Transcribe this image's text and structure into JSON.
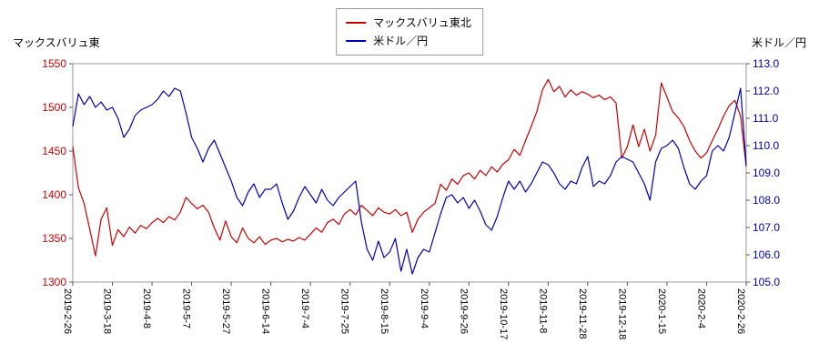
{
  "page": {
    "left_axis_title": "マックスバリュ東",
    "right_axis_title": "米ドル／円"
  },
  "legend": {
    "items": [
      {
        "label": "マックスバリュ東北",
        "color": "#cc0000"
      },
      {
        "label": "米ドル／円",
        "color": "#0000bb"
      }
    ]
  },
  "chart_data": {
    "type": "line",
    "title": "",
    "legend_position": "top-center",
    "grid": false,
    "x_labels": [
      "2019-2-26",
      "2019-3-18",
      "2019-4-8",
      "2019-5-7",
      "2019-5-27",
      "2019-6-14",
      "2019-7-4",
      "2019-7-25",
      "2019-8-15",
      "2019-9-4",
      "2019-9-26",
      "2019-10-17",
      "2019-11-8",
      "2019-11-28",
      "2019-12-18",
      "2020-1-15",
      "2020-2-4",
      "2020-2-26"
    ],
    "left_axis": {
      "label": "マックスバリュ東",
      "min": 1300,
      "max": 1550,
      "ticks": [
        1550,
        1500,
        1450,
        1400,
        1350,
        1300
      ],
      "color": "#cc0000"
    },
    "right_axis": {
      "label": "米ドル／円",
      "min": 105.0,
      "max": 113.0,
      "ticks": [
        "113.0",
        "112.0",
        "111.0",
        "110.0",
        "109.0",
        "108.0",
        "107.0",
        "106.0",
        "105.0"
      ],
      "color": "#0000bb"
    },
    "series": [
      {
        "name": "マックスバリュ東北",
        "axis": "left",
        "color": "#cc0000",
        "data_name": "stock-price-line",
        "values": [
          1455,
          1408,
          1390,
          1360,
          1330,
          1372,
          1385,
          1342,
          1360,
          1352,
          1363,
          1356,
          1365,
          1361,
          1368,
          1373,
          1368,
          1375,
          1371,
          1380,
          1397,
          1390,
          1384,
          1388,
          1380,
          1362,
          1348,
          1370,
          1352,
          1345,
          1362,
          1350,
          1345,
          1352,
          1343,
          1348,
          1350,
          1346,
          1349,
          1347,
          1351,
          1348,
          1355,
          1362,
          1357,
          1368,
          1372,
          1366,
          1378,
          1383,
          1377,
          1388,
          1382,
          1376,
          1385,
          1380,
          1378,
          1383,
          1376,
          1380,
          1357,
          1372,
          1380,
          1385,
          1390,
          1412,
          1405,
          1418,
          1412,
          1422,
          1425,
          1418,
          1428,
          1422,
          1432,
          1426,
          1435,
          1440,
          1452,
          1445,
          1462,
          1478,
          1495,
          1520,
          1532,
          1518,
          1524,
          1512,
          1520,
          1514,
          1518,
          1515,
          1511,
          1514,
          1509,
          1512,
          1505,
          1442,
          1455,
          1480,
          1455,
          1475,
          1450,
          1468,
          1528,
          1512,
          1495,
          1488,
          1478,
          1462,
          1450,
          1442,
          1448,
          1462,
          1475,
          1490,
          1502,
          1508,
          1490,
          1432
        ]
      },
      {
        "name": "米ドル／円",
        "axis": "right",
        "color": "#0000bb",
        "data_name": "usd-jpy-line",
        "values": [
          110.7,
          111.9,
          111.5,
          111.8,
          111.4,
          111.6,
          111.3,
          111.4,
          111.0,
          110.3,
          110.6,
          111.1,
          111.3,
          111.4,
          111.5,
          111.7,
          112.0,
          111.8,
          112.1,
          112.0,
          111.2,
          110.3,
          109.9,
          109.4,
          109.9,
          110.2,
          109.7,
          109.2,
          108.7,
          108.1,
          107.8,
          108.3,
          108.6,
          108.1,
          108.4,
          108.4,
          108.6,
          107.9,
          107.3,
          107.6,
          108.1,
          108.5,
          108.2,
          107.9,
          108.4,
          108.0,
          107.8,
          108.1,
          108.3,
          108.5,
          108.7,
          107.2,
          106.2,
          105.8,
          106.5,
          105.9,
          106.1,
          106.6,
          105.4,
          106.2,
          105.3,
          105.9,
          106.2,
          106.1,
          106.8,
          107.5,
          108.1,
          108.2,
          107.9,
          108.1,
          107.7,
          108.0,
          107.6,
          107.1,
          106.9,
          107.4,
          108.1,
          108.7,
          108.4,
          108.7,
          108.3,
          108.6,
          109.0,
          109.4,
          109.3,
          109.0,
          108.6,
          108.4,
          108.7,
          108.6,
          109.2,
          109.6,
          108.5,
          108.7,
          108.6,
          108.9,
          109.4,
          109.6,
          109.5,
          109.4,
          109.0,
          108.6,
          108.0,
          109.4,
          109.9,
          110.0,
          110.2,
          109.9,
          109.2,
          108.6,
          108.4,
          108.7,
          108.9,
          109.8,
          110.0,
          109.8,
          110.3,
          111.2,
          112.1,
          109.3
        ]
      }
    ]
  }
}
